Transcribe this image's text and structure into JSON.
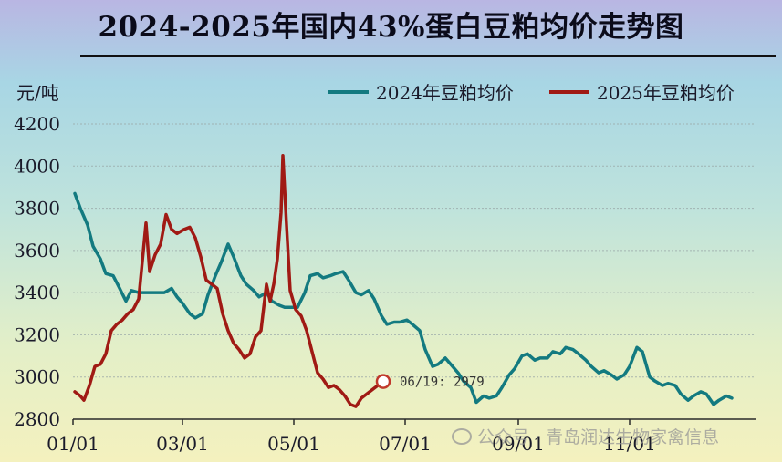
{
  "chart_data": {
    "type": "line",
    "title": "2024-2025年国内43%蛋白豆粕均价走势图",
    "ylabel": "元/吨",
    "xlabel": "",
    "ylim": [
      2800,
      4200
    ],
    "yticks": [
      2800,
      3000,
      3200,
      3400,
      3600,
      3800,
      4000,
      4200
    ],
    "xticks": [
      "01/01",
      "03/01",
      "05/01",
      "07/01",
      "09/01",
      "11/01"
    ],
    "grid": true,
    "legend_position": "top",
    "series": [
      {
        "name": "2024年豆粕均价",
        "color": "#137a80",
        "points": [
          [
            "01/02",
            3870
          ],
          [
            "01/05",
            3800
          ],
          [
            "01/09",
            3720
          ],
          [
            "01/12",
            3620
          ],
          [
            "01/16",
            3560
          ],
          [
            "01/19",
            3490
          ],
          [
            "01/23",
            3480
          ],
          [
            "01/26",
            3430
          ],
          [
            "01/30",
            3360
          ],
          [
            "02/02",
            3410
          ],
          [
            "02/06",
            3400
          ],
          [
            "02/13",
            3400
          ],
          [
            "02/20",
            3400
          ],
          [
            "02/24",
            3420
          ],
          [
            "02/27",
            3380
          ],
          [
            "03/01",
            3350
          ],
          [
            "03/05",
            3300
          ],
          [
            "03/08",
            3280
          ],
          [
            "03/12",
            3300
          ],
          [
            "03/15",
            3390
          ],
          [
            "03/19",
            3480
          ],
          [
            "03/22",
            3540
          ],
          [
            "03/26",
            3630
          ],
          [
            "03/29",
            3570
          ],
          [
            "04/02",
            3480
          ],
          [
            "04/05",
            3440
          ],
          [
            "04/09",
            3410
          ],
          [
            "04/12",
            3380
          ],
          [
            "04/16",
            3400
          ],
          [
            "04/19",
            3360
          ],
          [
            "04/23",
            3340
          ],
          [
            "04/26",
            3330
          ],
          [
            "04/30",
            3330
          ],
          [
            "05/03",
            3330
          ],
          [
            "05/07",
            3400
          ],
          [
            "05/10",
            3480
          ],
          [
            "05/14",
            3490
          ],
          [
            "05/17",
            3470
          ],
          [
            "05/21",
            3480
          ],
          [
            "05/24",
            3490
          ],
          [
            "05/28",
            3500
          ],
          [
            "05/31",
            3460
          ],
          [
            "06/04",
            3400
          ],
          [
            "06/07",
            3390
          ],
          [
            "06/11",
            3410
          ],
          [
            "06/14",
            3370
          ],
          [
            "06/18",
            3290
          ],
          [
            "06/21",
            3250
          ],
          [
            "06/25",
            3260
          ],
          [
            "06/28",
            3260
          ],
          [
            "07/02",
            3270
          ],
          [
            "07/05",
            3250
          ],
          [
            "07/09",
            3220
          ],
          [
            "07/12",
            3130
          ],
          [
            "07/16",
            3050
          ],
          [
            "07/19",
            3060
          ],
          [
            "07/23",
            3090
          ],
          [
            "07/26",
            3060
          ],
          [
            "07/30",
            3020
          ],
          [
            "08/02",
            2980
          ],
          [
            "08/06",
            2950
          ],
          [
            "08/09",
            2880
          ],
          [
            "08/13",
            2910
          ],
          [
            "08/16",
            2900
          ],
          [
            "08/20",
            2910
          ],
          [
            "08/23",
            2950
          ],
          [
            "08/27",
            3010
          ],
          [
            "08/30",
            3040
          ],
          [
            "09/03",
            3100
          ],
          [
            "09/06",
            3110
          ],
          [
            "09/10",
            3080
          ],
          [
            "09/13",
            3090
          ],
          [
            "09/17",
            3090
          ],
          [
            "09/20",
            3120
          ],
          [
            "09/24",
            3110
          ],
          [
            "09/27",
            3140
          ],
          [
            "10/01",
            3130
          ],
          [
            "10/04",
            3110
          ],
          [
            "10/08",
            3080
          ],
          [
            "10/11",
            3050
          ],
          [
            "10/15",
            3020
          ],
          [
            "10/18",
            3030
          ],
          [
            "10/22",
            3010
          ],
          [
            "10/25",
            2990
          ],
          [
            "10/29",
            3010
          ],
          [
            "11/01",
            3050
          ],
          [
            "11/05",
            3140
          ],
          [
            "11/08",
            3120
          ],
          [
            "11/12",
            3000
          ],
          [
            "11/15",
            2980
          ],
          [
            "11/19",
            2960
          ],
          [
            "11/22",
            2970
          ],
          [
            "11/26",
            2960
          ],
          [
            "11/29",
            2920
          ],
          [
            "12/03",
            2890
          ],
          [
            "12/06",
            2910
          ],
          [
            "12/10",
            2930
          ],
          [
            "12/13",
            2920
          ],
          [
            "12/17",
            2870
          ],
          [
            "12/20",
            2890
          ],
          [
            "12/24",
            2910
          ],
          [
            "12/27",
            2900
          ]
        ]
      },
      {
        "name": "2025年豆粕均价",
        "color": "#a01a14",
        "points": [
          [
            "01/02",
            2930
          ],
          [
            "01/05",
            2910
          ],
          [
            "01/07",
            2890
          ],
          [
            "01/10",
            2960
          ],
          [
            "01/13",
            3050
          ],
          [
            "01/16",
            3060
          ],
          [
            "01/19",
            3110
          ],
          [
            "01/22",
            3220
          ],
          [
            "01/25",
            3250
          ],
          [
            "01/28",
            3270
          ],
          [
            "01/31",
            3300
          ],
          [
            "02/03",
            3320
          ],
          [
            "02/06",
            3370
          ],
          [
            "02/08",
            3550
          ],
          [
            "02/10",
            3730
          ],
          [
            "02/12",
            3500
          ],
          [
            "02/15",
            3580
          ],
          [
            "02/18",
            3630
          ],
          [
            "02/21",
            3770
          ],
          [
            "02/24",
            3700
          ],
          [
            "02/27",
            3680
          ],
          [
            "03/02",
            3700
          ],
          [
            "03/05",
            3710
          ],
          [
            "03/08",
            3660
          ],
          [
            "03/11",
            3570
          ],
          [
            "03/14",
            3460
          ],
          [
            "03/17",
            3440
          ],
          [
            "03/20",
            3420
          ],
          [
            "03/23",
            3300
          ],
          [
            "03/26",
            3220
          ],
          [
            "03/29",
            3160
          ],
          [
            "04/01",
            3130
          ],
          [
            "04/04",
            3090
          ],
          [
            "04/07",
            3110
          ],
          [
            "04/10",
            3190
          ],
          [
            "04/13",
            3220
          ],
          [
            "04/16",
            3440
          ],
          [
            "04/18",
            3360
          ],
          [
            "04/20",
            3440
          ],
          [
            "04/22",
            3560
          ],
          [
            "04/24",
            3780
          ],
          [
            "04/25",
            4050
          ],
          [
            "04/27",
            3720
          ],
          [
            "04/29",
            3410
          ],
          [
            "05/02",
            3320
          ],
          [
            "05/05",
            3290
          ],
          [
            "05/08",
            3220
          ],
          [
            "05/11",
            3120
          ],
          [
            "05/14",
            3020
          ],
          [
            "05/17",
            2990
          ],
          [
            "05/20",
            2950
          ],
          [
            "05/23",
            2960
          ],
          [
            "05/26",
            2940
          ],
          [
            "05/29",
            2910
          ],
          [
            "06/01",
            2870
          ],
          [
            "06/04",
            2860
          ],
          [
            "06/07",
            2900
          ],
          [
            "06/10",
            2920
          ],
          [
            "06/13",
            2940
          ],
          [
            "06/16",
            2960
          ],
          [
            "06/19",
            2979
          ]
        ]
      }
    ],
    "annotation": {
      "text": "06/19: 2979",
      "x": "06/19",
      "y": 2979,
      "series": "2025年豆粕均价"
    }
  },
  "watermark": {
    "text": "公众号 · 青岛润达生物家禽信息"
  }
}
